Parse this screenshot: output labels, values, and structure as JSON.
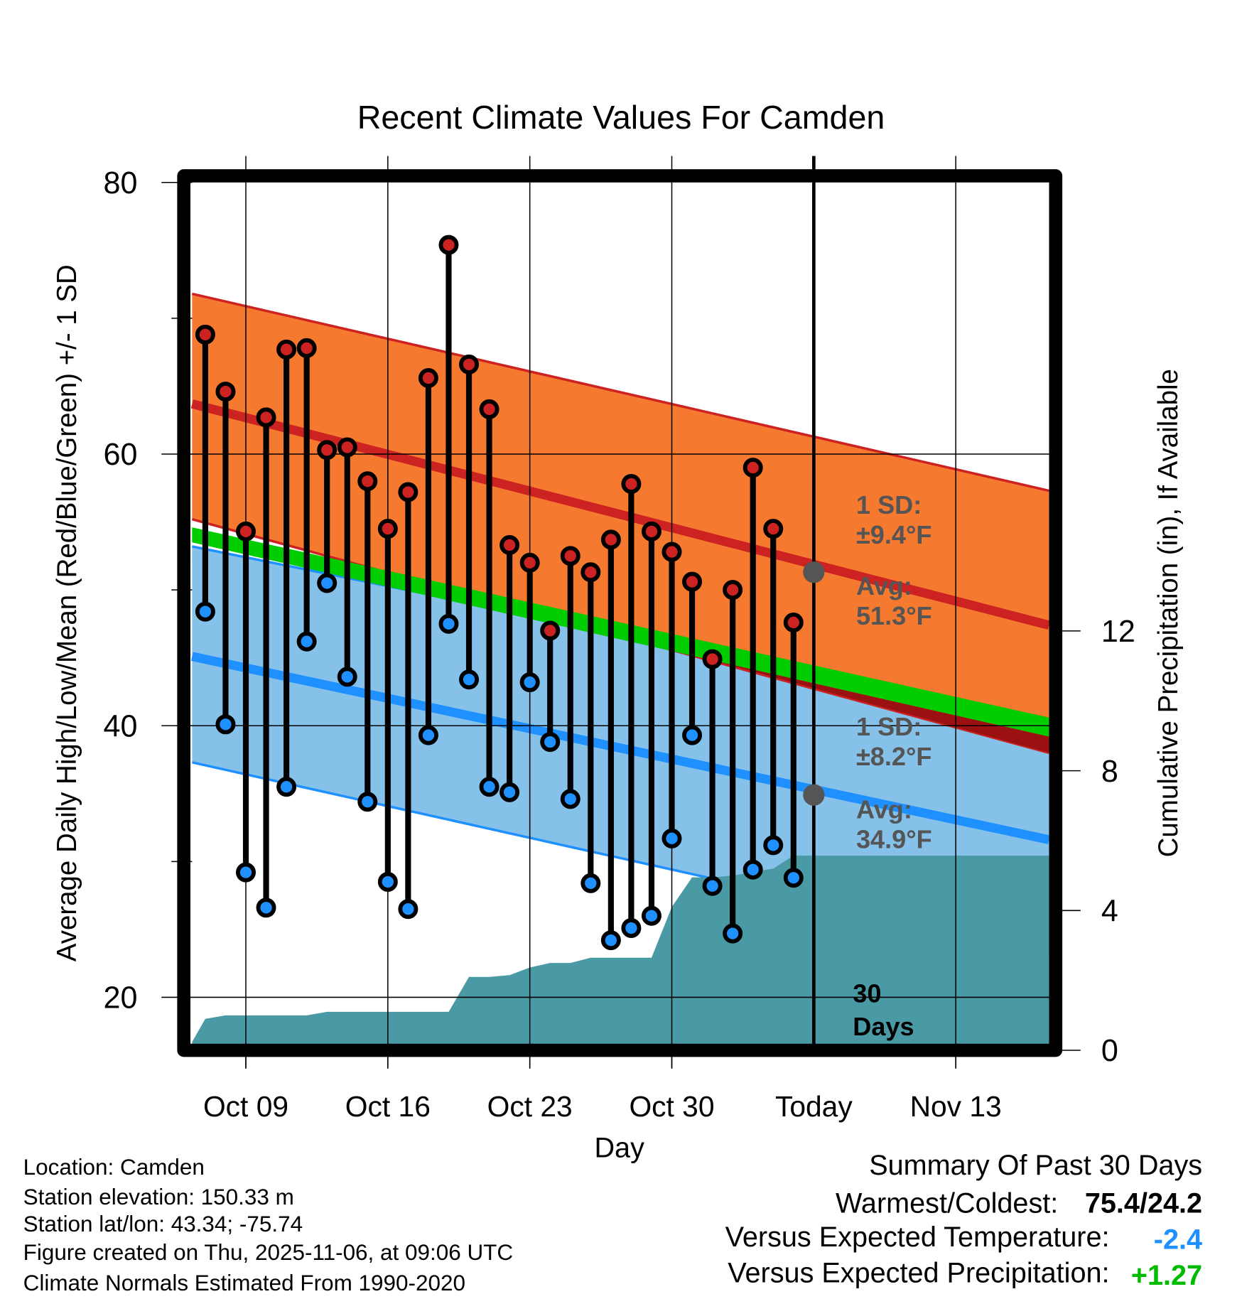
{
  "chart_data": {
    "type": "line",
    "title": "Recent Climate Values For Camden",
    "xlabel": "Day",
    "ylabel": "Average Daily High/Low/Mean (Red/Blue/Green) +/- 1 SD",
    "y2label": "Cumulative Precipitation (in), If Available",
    "ylim": [
      16.1,
      80
    ],
    "y2lim": [
      0,
      15.1
    ],
    "yticks": [
      80,
      60,
      40,
      20
    ],
    "y2ticks": [
      0,
      4,
      8,
      12
    ],
    "x_range_days": [
      -0.65,
      41.6
    ],
    "xticks": [
      {
        "day": 2,
        "label": "Oct 09"
      },
      {
        "day": 9,
        "label": "Oct 16"
      },
      {
        "day": 16,
        "label": "Oct 23"
      },
      {
        "day": 23,
        "label": "Oct 30"
      },
      {
        "day": 30,
        "label": "Today"
      },
      {
        "day": 37,
        "label": "Nov 13"
      }
    ],
    "day0": "Oct 07",
    "today_day": 30,
    "dates": [
      "Oct 07",
      "Oct 08",
      "Oct 09",
      "Oct 10",
      "Oct 11",
      "Oct 12",
      "Oct 13",
      "Oct 14",
      "Oct 15",
      "Oct 16",
      "Oct 17",
      "Oct 18",
      "Oct 19",
      "Oct 20",
      "Oct 21",
      "Oct 22",
      "Oct 23",
      "Oct 24",
      "Oct 25",
      "Oct 26",
      "Oct 27",
      "Oct 28",
      "Oct 29",
      "Oct 30",
      "Oct 31",
      "Nov 01",
      "Nov 02",
      "Nov 03",
      "Nov 04",
      "Nov 05"
    ],
    "series": [
      {
        "name": "Daily High",
        "color": "#cc2222",
        "values": [
          68.8,
          64.6,
          54.3,
          62.7,
          67.7,
          67.8,
          60.3,
          60.5,
          58.0,
          54.5,
          57.2,
          65.6,
          75.4,
          66.6,
          63.3,
          53.3,
          52.0,
          47.0,
          52.5,
          51.3,
          53.7,
          57.8,
          54.3,
          52.8,
          50.6,
          44.9,
          50.0,
          59.0,
          54.5,
          47.6
        ]
      },
      {
        "name": "Daily Low",
        "color": "#1e90ff",
        "values": [
          48.4,
          40.1,
          29.2,
          26.6,
          35.5,
          46.2,
          50.5,
          43.6,
          34.4,
          28.5,
          26.5,
          39.3,
          47.5,
          43.4,
          35.5,
          35.1,
          43.2,
          38.8,
          34.6,
          28.4,
          24.2,
          25.1,
          26.0,
          31.7,
          39.3,
          28.2,
          24.7,
          29.4,
          31.2,
          28.8
        ]
      },
      {
        "name": "Cumulative Precipitation",
        "color": "#4a9aa5",
        "axis": "right",
        "start_value": 0.24,
        "values": [
          0.9,
          1.0,
          1.0,
          1.0,
          1.0,
          1.0,
          1.1,
          1.1,
          1.1,
          1.1,
          1.1,
          1.1,
          1.1,
          2.1,
          2.1,
          2.15,
          2.37,
          2.5,
          2.5,
          2.65,
          2.65,
          2.65,
          2.65,
          4.1,
          4.95,
          4.95,
          5.0,
          5.1,
          5.2,
          5.57
        ]
      }
    ],
    "normals": {
      "high_mean": [
        63.7,
        47.4
      ],
      "high_upper_sd": [
        71.8,
        57.3
      ],
      "high_lower_sd": [
        55.2,
        38.0
      ],
      "low_mean": [
        45.1,
        31.6
      ],
      "low_upper_sd": [
        53.2,
        40.4
      ],
      "low_lower_sd": [
        37.3,
        23.2
      ],
      "mean_band_top": [
        54.6,
        40.6
      ],
      "mean_band_bottom": [
        53.5,
        39.2
      ],
      "today_high_avg": 51.3,
      "today_low_avg": 34.9
    },
    "colors": {
      "high_band": "#f5792e",
      "high_line": "#cc2222",
      "low_band": "#85c1e9",
      "low_line": "#1e90ff",
      "mean_band": "#00cc00",
      "overlap": "#9b1111",
      "precip": "#4a9aa5"
    },
    "annotations": {
      "high_sd_title": "1 SD:",
      "high_sd_value": "±9.4°F",
      "high_avg_title": "Avg:",
      "high_avg_value": "51.3°F",
      "low_sd_title": "1 SD:",
      "low_sd_value": "±8.2°F",
      "low_avg_title": "Avg:",
      "low_avg_value": "34.9°F",
      "days_count": "30",
      "days_word": "Days"
    }
  },
  "footer": {
    "location": "Location: Camden",
    "elevation": "Station elevation: 150.33 m",
    "latlon": "Station lat/lon: 43.34; -75.74",
    "created": "Figure created on Thu, 2025-11-06, at 09:06 UTC",
    "normals": "Climate Normals Estimated From 1990-2020"
  },
  "summary": {
    "title": "Summary Of Past 30 Days",
    "warmest_label": "Warmest/Coldest:",
    "warmest_value": "75.4/24.2",
    "temp_label": "Versus Expected Temperature:",
    "temp_value": "-2.4",
    "temp_color": "#1e90ff",
    "precip_label": "Versus Expected Precipitation:",
    "precip_value": "+1.27",
    "precip_color": "#00bb00"
  }
}
